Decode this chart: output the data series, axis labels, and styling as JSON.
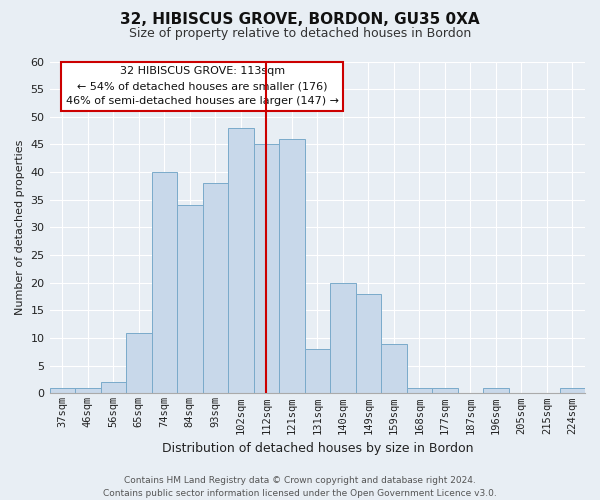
{
  "title": "32, HIBISCUS GROVE, BORDON, GU35 0XA",
  "subtitle": "Size of property relative to detached houses in Bordon",
  "xlabel": "Distribution of detached houses by size in Bordon",
  "ylabel": "Number of detached properties",
  "bar_labels": [
    "37sqm",
    "46sqm",
    "56sqm",
    "65sqm",
    "74sqm",
    "84sqm",
    "93sqm",
    "102sqm",
    "112sqm",
    "121sqm",
    "131sqm",
    "140sqm",
    "149sqm",
    "159sqm",
    "168sqm",
    "177sqm",
    "187sqm",
    "196sqm",
    "205sqm",
    "215sqm",
    "224sqm"
  ],
  "bar_values": [
    1,
    1,
    2,
    11,
    40,
    34,
    38,
    48,
    45,
    46,
    8,
    20,
    18,
    9,
    1,
    1,
    0,
    1,
    0,
    0,
    1
  ],
  "bar_color": "#c8d8ea",
  "bar_edge_color": "#7aaaca",
  "ylim": [
    0,
    60
  ],
  "yticks": [
    0,
    5,
    10,
    15,
    20,
    25,
    30,
    35,
    40,
    45,
    50,
    55,
    60
  ],
  "vline_x_index": 8,
  "vline_color": "#cc0000",
  "annotation_title": "32 HIBISCUS GROVE: 113sqm",
  "annotation_line1": "← 54% of detached houses are smaller (176)",
  "annotation_line2": "46% of semi-detached houses are larger (147) →",
  "annotation_box_facecolor": "#ffffff",
  "annotation_box_edgecolor": "#cc0000",
  "footer_line1": "Contains HM Land Registry data © Crown copyright and database right 2024.",
  "footer_line2": "Contains public sector information licensed under the Open Government Licence v3.0.",
  "background_color": "#e8eef4",
  "plot_bg_color": "#e8eef4",
  "grid_color": "#ffffff",
  "title_fontsize": 11,
  "subtitle_fontsize": 9,
  "ylabel_fontsize": 8,
  "xlabel_fontsize": 9,
  "tick_fontsize": 7.5,
  "footer_fontsize": 6.5
}
